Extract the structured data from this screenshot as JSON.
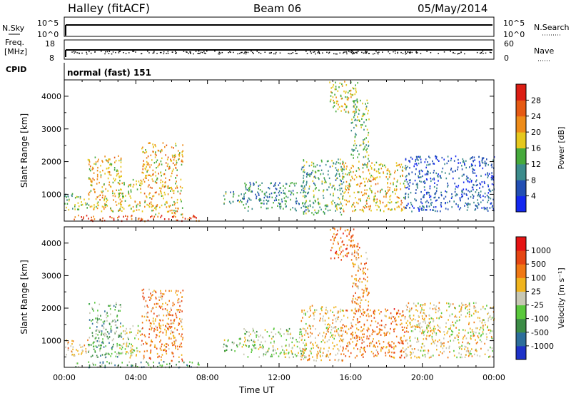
{
  "header": {
    "station": "Halley (fitACF)",
    "beam": "Beam 06",
    "date": "05/May/2014"
  },
  "panels": {
    "nsky": {
      "left_label": "N.Sky",
      "left_ticks": [
        "10^5",
        "10^0"
      ],
      "right_ticks": [
        "10^5",
        "10^0"
      ],
      "right_label": "N.Search"
    },
    "freq": {
      "left_label_line1": "Freq.",
      "left_label_line2": "[MHz]",
      "left_ticks": [
        "18",
        "8"
      ],
      "right_ticks": [
        "60",
        "0"
      ],
      "right_label": "Nave"
    },
    "cpid": {
      "label": "CPID",
      "mode": "normal (fast) 151"
    }
  },
  "chart_data": [
    {
      "type": "heatmap",
      "name": "power",
      "xlabel": "Time UT",
      "ylabel": "Slant Range [km]",
      "xticks": [
        "00:00",
        "04:00",
        "08:00",
        "12:00",
        "16:00",
        "20:00",
        "00:00"
      ],
      "yticks": [
        1000,
        2000,
        3000,
        4000
      ],
      "ylim": [
        180,
        4500
      ],
      "xlim_hours": [
        0,
        24
      ],
      "colorbar": {
        "label": "Power [dB]",
        "ticks": [
          4,
          8,
          12,
          16,
          20,
          24,
          28
        ],
        "colors": [
          "#1428f0",
          "#234fb4",
          "#3c8c8c",
          "#46aa3c",
          "#e6c81e",
          "#ee8c19",
          "#e65a14",
          "#dc1e14"
        ]
      },
      "regions": [
        {
          "t0": 0.0,
          "t1": 1.3,
          "r0": 550,
          "r1": 1050,
          "level": 0.45
        },
        {
          "t0": 1.3,
          "t1": 3.2,
          "r0": 500,
          "r1": 2200,
          "level": 0.6
        },
        {
          "t0": 3.0,
          "t1": 4.3,
          "r0": 500,
          "r1": 1500,
          "level": 0.55
        },
        {
          "t0": 4.3,
          "t1": 6.6,
          "r0": 400,
          "r1": 2600,
          "level": 0.62
        },
        {
          "t0": 0.5,
          "t1": 7.5,
          "r0": 200,
          "r1": 380,
          "level": 0.85
        },
        {
          "t0": 8.8,
          "t1": 10.0,
          "r0": 700,
          "r1": 1100,
          "level": 0.35
        },
        {
          "t0": 10.0,
          "t1": 13.5,
          "r0": 500,
          "r1": 1400,
          "level": 0.3
        },
        {
          "t0": 13.2,
          "t1": 15.6,
          "r0": 400,
          "r1": 2100,
          "level": 0.4
        },
        {
          "t0": 14.8,
          "t1": 16.4,
          "r0": 3500,
          "r1": 4500,
          "level": 0.55
        },
        {
          "t0": 16.0,
          "t1": 17.0,
          "r0": 1900,
          "r1": 3900,
          "level": 0.45
        },
        {
          "t0": 15.5,
          "t1": 19.0,
          "r0": 500,
          "r1": 2000,
          "level": 0.6
        },
        {
          "t0": 19.0,
          "t1": 24.0,
          "r0": 500,
          "r1": 2200,
          "level": 0.2
        }
      ]
    },
    {
      "type": "heatmap",
      "name": "velocity",
      "xlabel": "Time UT",
      "ylabel": "Slant Range [km]",
      "xticks": [
        "00:00",
        "04:00",
        "08:00",
        "12:00",
        "16:00",
        "20:00",
        "00:00"
      ],
      "yticks": [
        1000,
        2000,
        3000,
        4000
      ],
      "ylim": [
        180,
        4500
      ],
      "xlim_hours": [
        0,
        24
      ],
      "colorbar": {
        "label": "Velocity [m s⁻¹]",
        "ticks": [
          "1000",
          "500",
          "100",
          "25",
          "-25",
          "-100",
          "-500",
          "-1000"
        ],
        "colors": [
          "#1e32c8",
          "#2d6e9b",
          "#3c8c46",
          "#5ac83c",
          "#c8c8b4",
          "#f0b41e",
          "#f07814",
          "#e64614",
          "#e61414"
        ]
      },
      "regions": [
        {
          "t0": 0.0,
          "t1": 1.3,
          "r0": 550,
          "r1": 1050,
          "level": 0.65
        },
        {
          "t0": 1.3,
          "t1": 3.2,
          "r0": 500,
          "r1": 2200,
          "level": 0.35
        },
        {
          "t0": 3.0,
          "t1": 4.3,
          "r0": 500,
          "r1": 1500,
          "level": 0.5
        },
        {
          "t0": 4.3,
          "t1": 6.6,
          "r0": 400,
          "r1": 2600,
          "level": 0.7
        },
        {
          "t0": 0.5,
          "t1": 7.5,
          "r0": 200,
          "r1": 380,
          "level": 0.33
        },
        {
          "t0": 8.8,
          "t1": 10.0,
          "r0": 700,
          "r1": 1100,
          "level": 0.4
        },
        {
          "t0": 10.0,
          "t1": 13.5,
          "r0": 500,
          "r1": 1400,
          "level": 0.45
        },
        {
          "t0": 13.2,
          "t1": 15.6,
          "r0": 400,
          "r1": 2100,
          "level": 0.6
        },
        {
          "t0": 14.8,
          "t1": 16.4,
          "r0": 3500,
          "r1": 4500,
          "level": 0.75
        },
        {
          "t0": 16.0,
          "t1": 17.0,
          "r0": 1900,
          "r1": 3900,
          "level": 0.68
        },
        {
          "t0": 15.5,
          "t1": 19.0,
          "r0": 500,
          "r1": 2000,
          "level": 0.72
        },
        {
          "t0": 19.0,
          "t1": 24.0,
          "r0": 500,
          "r1": 2200,
          "level": 0.55
        }
      ]
    }
  ]
}
